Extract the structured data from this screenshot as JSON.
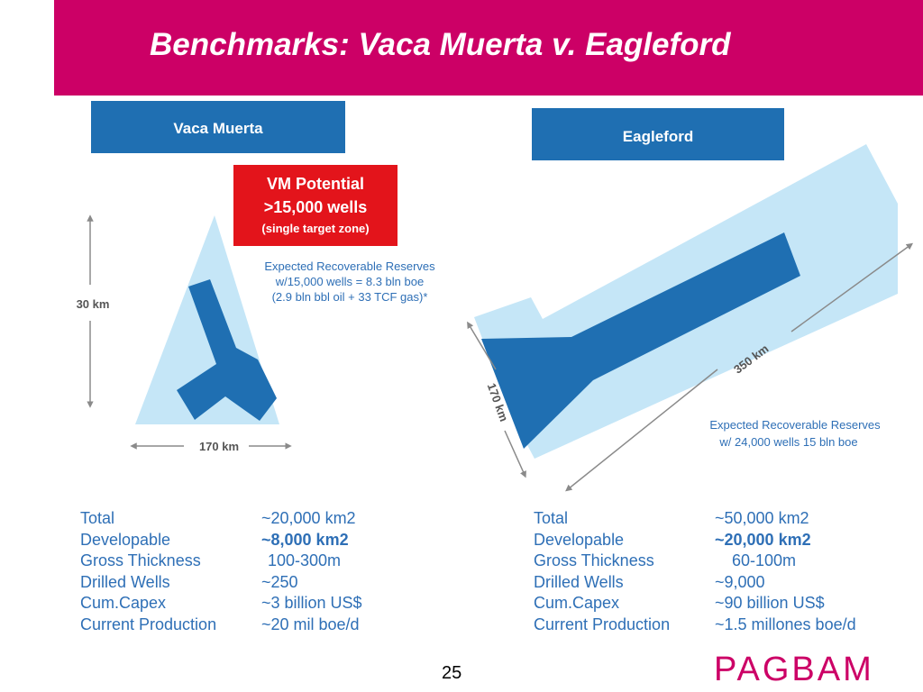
{
  "title": "Benchmarks: Vaca Muerta v. Eagleford",
  "page_number": "25",
  "logo_text": "PAGBAM",
  "colors": {
    "brand": "#cc0066",
    "dark_blue": "#1f6fb2",
    "light_blue": "#c5e6f7",
    "red_callout": "#e3141b",
    "text_blue": "#2e6fb6"
  },
  "vaca_muerta": {
    "header": "Vaca Muerta",
    "potential": {
      "line1": "VM Potential",
      "line2": ">15,000 wells",
      "line3": "(single target zone)"
    },
    "reserves": {
      "line1": "Expected  Recoverable Reserves",
      "line2": "w/15,000 wells = 8.3 bln boe",
      "line3": "(2.9 bln bbl oil + 33 TCF gas)*"
    },
    "dim_vertical": "30 km",
    "dim_horizontal": "170 km",
    "stats": [
      {
        "label": "Total",
        "value": "~20,000 km2",
        "bold": false
      },
      {
        "label": "Developable",
        "value": "~8,000 km2",
        "bold": true
      },
      {
        "label": "Gross Thickness",
        "value": "100-300m",
        "bold": false
      },
      {
        "label": "Drilled Wells",
        "value": "~250",
        "bold": false
      },
      {
        "label": "Cum.Capex",
        "value": "~3 billion US$",
        "bold": false
      },
      {
        "label": "Current Production",
        "value": "~20 mil boe/d",
        "bold": false
      }
    ]
  },
  "eagleford": {
    "header": "Eagleford",
    "dim_width": "170 km",
    "dim_length": "350 km",
    "reserves": {
      "line1": "Expected  Recoverable Reserves",
      "line2": "w/ 24,000 wells 15 bln boe"
    },
    "stats": [
      {
        "label": "Total",
        "value": "~50,000 km2",
        "bold": false
      },
      {
        "label": "Developable",
        "value": "~20,000 km2",
        "bold": true
      },
      {
        "label": "Gross Thickness",
        "value": "60-100m",
        "bold": false
      },
      {
        "label": "Drilled Wells",
        "value": "~9,000",
        "bold": false
      },
      {
        "label": "Cum.Capex",
        "value": "~90 billion US$",
        "bold": false
      },
      {
        "label": "Current Production",
        "value": "~1.5 millones boe/d",
        "bold": false
      }
    ]
  }
}
